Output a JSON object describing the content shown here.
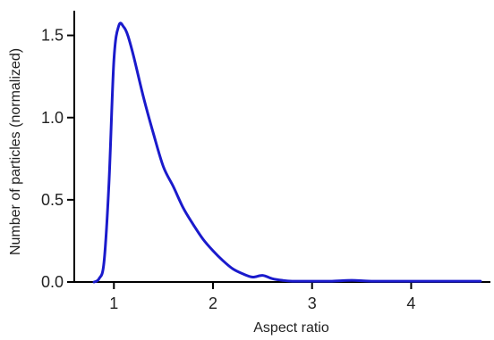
{
  "chart_data": {
    "type": "line",
    "title": "",
    "xlabel": "Aspect ratio",
    "ylabel": "Number of particles (normalized)",
    "xlim": [
      0.6,
      4.8
    ],
    "ylim": [
      0,
      1.65
    ],
    "xticks": [
      1,
      2,
      3,
      4
    ],
    "yticks": [
      0,
      0.5,
      1,
      1.5
    ],
    "xtick_labels": [
      "1",
      "2",
      "3",
      "4"
    ],
    "ytick_labels": [
      "0.0",
      "0.5",
      "1.0",
      "1.5"
    ],
    "grid": false,
    "legend": "none",
    "color": "#1a1acc",
    "series": [
      {
        "x": [
          0.8,
          0.85,
          0.9,
          0.95,
          1.0,
          1.05,
          1.1,
          1.14,
          1.2,
          1.3,
          1.4,
          1.5,
          1.6,
          1.7,
          1.8,
          1.9,
          2.0,
          2.1,
          2.2,
          2.3,
          2.4,
          2.5,
          2.6,
          2.7,
          2.8,
          3.0,
          3.2,
          3.4,
          3.6,
          4.0,
          4.4,
          4.7
        ],
        "y": [
          0.0,
          0.02,
          0.12,
          0.6,
          1.35,
          1.56,
          1.55,
          1.5,
          1.37,
          1.12,
          0.9,
          0.7,
          0.58,
          0.45,
          0.35,
          0.26,
          0.19,
          0.13,
          0.08,
          0.05,
          0.03,
          0.04,
          0.02,
          0.01,
          0.005,
          0.005,
          0.005,
          0.01,
          0.005,
          0.005,
          0.005,
          0.005
        ]
      }
    ]
  }
}
